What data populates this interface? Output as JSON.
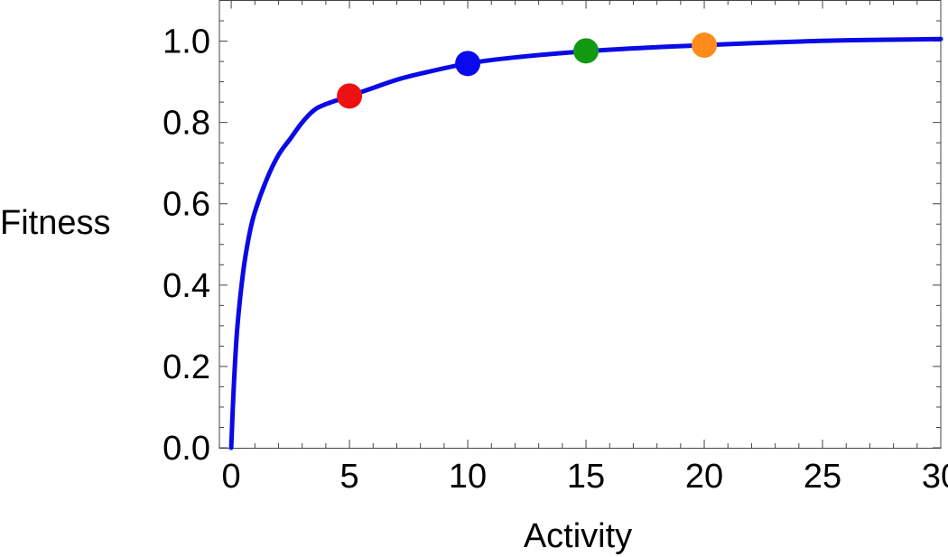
{
  "chart_data": {
    "type": "line",
    "title": "",
    "xlabel": "Activity",
    "ylabel": "Fitness",
    "xlim": [
      -0.5,
      30
    ],
    "ylim": [
      0,
      1.1
    ],
    "x_ticks": [
      0,
      5,
      10,
      15,
      20,
      25,
      30
    ],
    "x_tick_labels": [
      "0",
      "5",
      "10",
      "15",
      "20",
      "25",
      "30"
    ],
    "y_ticks": [
      0.0,
      0.2,
      0.4,
      0.6,
      0.8,
      1.0
    ],
    "y_tick_labels": [
      "0.0",
      "0.2",
      "0.4",
      "0.6",
      "0.8",
      "1.0"
    ],
    "grid": false,
    "curve": {
      "color": "#0a0ae6",
      "x": [
        0,
        0.1,
        0.25,
        0.5,
        0.75,
        1,
        1.5,
        2,
        2.5,
        3,
        3.5,
        4,
        5,
        6,
        7,
        8,
        10,
        12,
        15,
        18,
        20,
        23,
        26,
        30
      ],
      "y": [
        0.0,
        0.14,
        0.29,
        0.43,
        0.52,
        0.58,
        0.66,
        0.72,
        0.76,
        0.8,
        0.83,
        0.845,
        0.865,
        0.885,
        0.905,
        0.92,
        0.945,
        0.96,
        0.975,
        0.985,
        0.99,
        0.997,
        1.002,
        1.005
      ]
    },
    "points": [
      {
        "x": 5,
        "y": 0.865,
        "color": "#ee1111"
      },
      {
        "x": 10,
        "y": 0.945,
        "color": "#0a0aee"
      },
      {
        "x": 15,
        "y": 0.976,
        "color": "#119911"
      },
      {
        "x": 20,
        "y": 0.99,
        "color": "#ff8c1a"
      }
    ]
  }
}
